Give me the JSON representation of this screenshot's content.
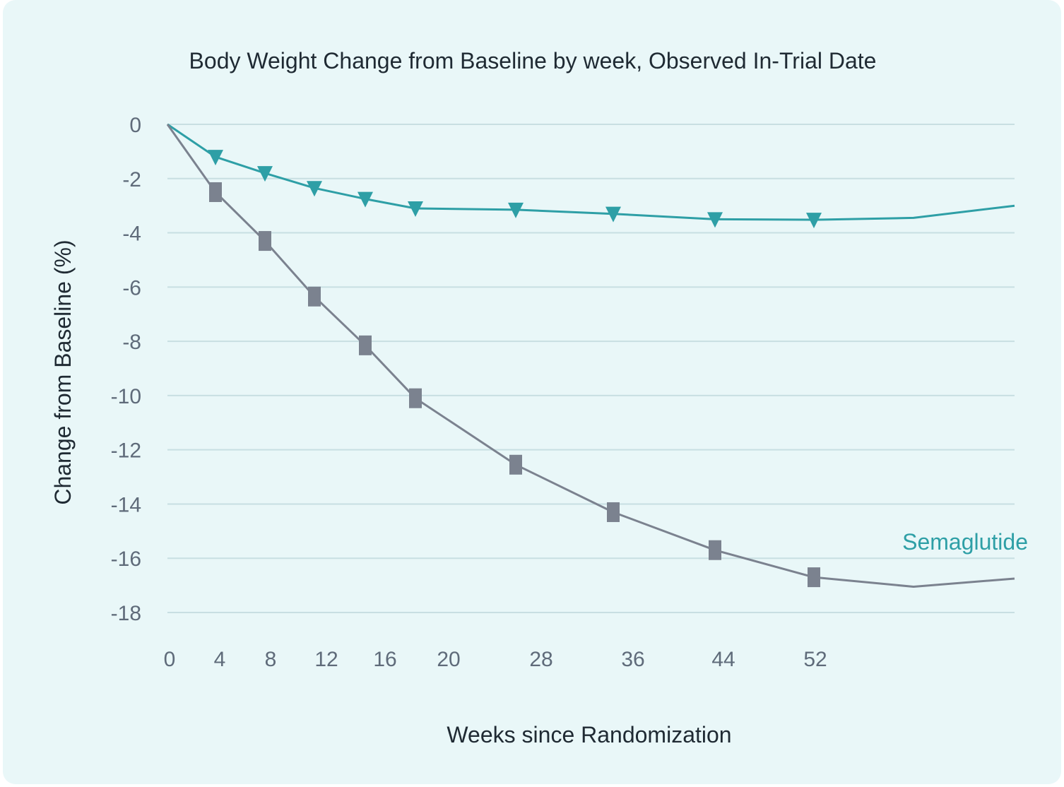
{
  "chart_data": {
    "type": "line",
    "title": "Body Weight Change from Baseline by week, Observed In-Trial Date",
    "xlabel": "Weeks since Randomization",
    "ylabel": "Change from Baseline (%)",
    "ylim": [
      -18,
      0
    ],
    "grid": true,
    "y_ticks": [
      0,
      -2,
      -4,
      -6,
      -8,
      -10,
      -12,
      -14,
      -16,
      -18
    ],
    "x_ticks": [
      {
        "label": "0",
        "week": 0
      },
      {
        "label": "4",
        "week": 4
      },
      {
        "label": "8",
        "week": 8
      },
      {
        "label": "12",
        "week": 12
      },
      {
        "label": "16",
        "week": 16
      },
      {
        "label": "20",
        "week": 20
      },
      {
        "label": "28",
        "week": 28
      },
      {
        "label": "36",
        "week": 36
      },
      {
        "label": "44",
        "week": 44
      },
      {
        "label": "52",
        "week": 52
      }
    ],
    "series": [
      {
        "name": "Semaglutide",
        "color": "#2e9fa6",
        "marker": "triangle-down",
        "points": [
          {
            "week": 0,
            "value": 0,
            "marker": false
          },
          {
            "week": 4,
            "value": -1.2,
            "marker": true
          },
          {
            "week": 8,
            "value": -1.8,
            "marker": true
          },
          {
            "week": 12,
            "value": -2.35,
            "marker": true
          },
          {
            "week": 16,
            "value": -2.75,
            "marker": true
          },
          {
            "week": 20,
            "value": -3.1,
            "marker": true
          },
          {
            "week": 28,
            "value": -3.15,
            "marker": true
          },
          {
            "week": 36,
            "value": -3.3,
            "marker": true
          },
          {
            "week": 44,
            "value": -3.5,
            "marker": true
          },
          {
            "week": 52,
            "value": -3.52,
            "marker": true
          },
          {
            "week": 60,
            "value": -3.45,
            "marker": false
          },
          {
            "week": 68,
            "value": -3.0,
            "marker": false
          }
        ]
      },
      {
        "name": "",
        "color": "#7b828f",
        "marker": "square",
        "points": [
          {
            "week": 0,
            "value": 0,
            "marker": false
          },
          {
            "week": 4,
            "value": -2.5,
            "marker": true
          },
          {
            "week": 8,
            "value": -4.3,
            "marker": true
          },
          {
            "week": 12,
            "value": -6.35,
            "marker": true
          },
          {
            "week": 16,
            "value": -8.15,
            "marker": true
          },
          {
            "week": 20,
            "value": -10.1,
            "marker": true
          },
          {
            "week": 28,
            "value": -12.55,
            "marker": true
          },
          {
            "week": 36,
            "value": -14.3,
            "marker": true
          },
          {
            "week": 44,
            "value": -15.7,
            "marker": true
          },
          {
            "week": 52,
            "value": -16.7,
            "marker": true
          },
          {
            "week": 60,
            "value": -17.05,
            "marker": false
          },
          {
            "week": 68,
            "value": -16.75,
            "marker": false
          }
        ]
      }
    ],
    "annotations": [
      {
        "text": "Semaglutide",
        "series": "Semaglutide",
        "color": "#2e9fa6"
      }
    ]
  }
}
